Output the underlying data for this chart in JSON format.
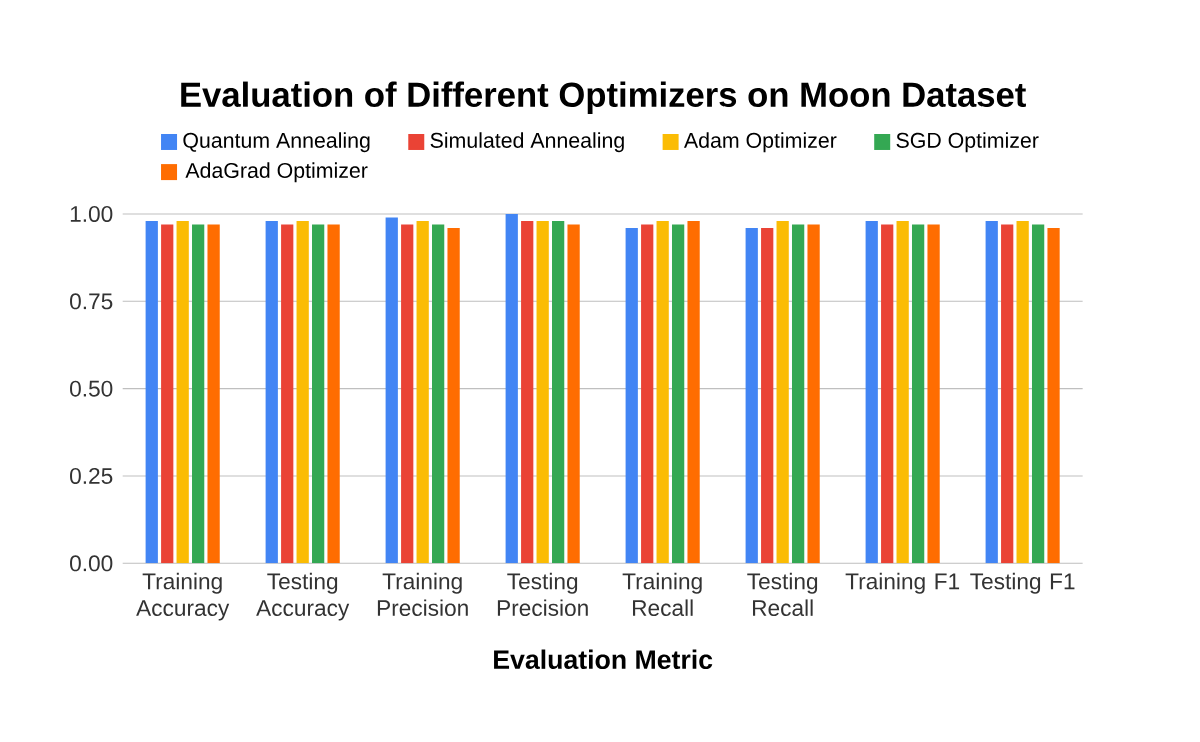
{
  "chart_data": {
    "type": "bar",
    "title": "Evaluation of Different Optimizers on Moon Dataset",
    "xlabel": "Evaluation Metric",
    "categories": [
      "Training Accuracy",
      "Testing Accuracy",
      "Training Precision",
      "Testing Precision",
      "Training Recall",
      "Testing Recall",
      "Training F1",
      "Testing F1"
    ],
    "series": [
      {
        "name": "Quantum Annealing",
        "color": "#4285f4",
        "values": [
          0.98,
          0.98,
          0.99,
          1.0,
          0.96,
          0.96,
          0.98,
          0.98
        ]
      },
      {
        "name": "Simulated Annealing",
        "color": "#ea4335",
        "values": [
          0.97,
          0.97,
          0.97,
          0.98,
          0.97,
          0.96,
          0.97,
          0.97
        ]
      },
      {
        "name": "Adam Optimizer",
        "color": "#fbbc04",
        "values": [
          0.98,
          0.98,
          0.98,
          0.98,
          0.98,
          0.98,
          0.98,
          0.98
        ]
      },
      {
        "name": "SGD Optimizer",
        "color": "#34a853",
        "values": [
          0.97,
          0.97,
          0.97,
          0.98,
          0.97,
          0.97,
          0.97,
          0.97
        ]
      },
      {
        "name": "AdaGrad Optimizer",
        "color": "#ff6d01",
        "values": [
          0.97,
          0.97,
          0.96,
          0.97,
          0.98,
          0.97,
          0.97,
          0.96
        ]
      }
    ],
    "ylim": [
      0,
      1.0
    ],
    "yticks": [
      {
        "value": 0,
        "label": "0.00"
      },
      {
        "value": 0.25,
        "label": "0.25"
      },
      {
        "value": 0.5,
        "label": "0.50"
      },
      {
        "value": 0.75,
        "label": "0.75"
      },
      {
        "value": 1.0,
        "label": "1.00"
      }
    ],
    "grid": "y",
    "legend": "top"
  }
}
